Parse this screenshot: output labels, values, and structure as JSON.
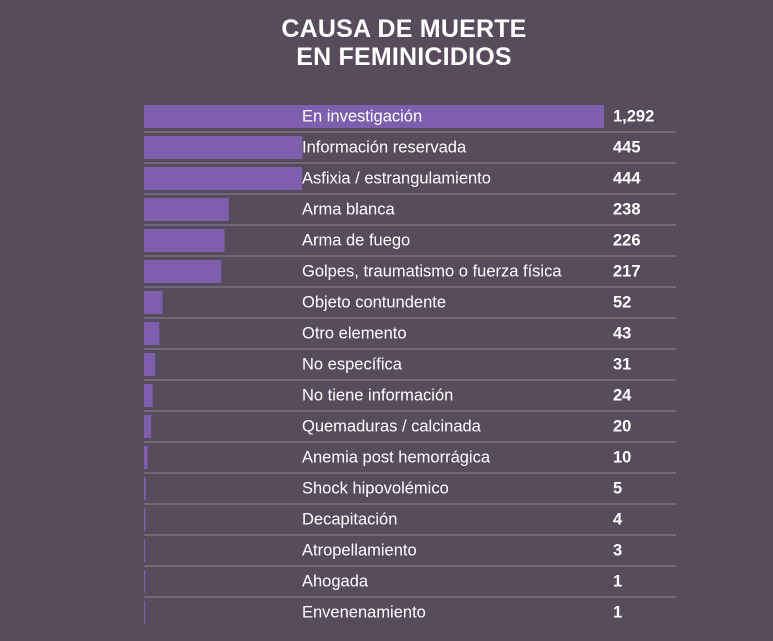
{
  "chart_data": {
    "type": "bar",
    "orientation": "horizontal",
    "title_lines": [
      "CAUSA DE MUERTE",
      "EN FEMINICIDIOS"
    ],
    "categories": [
      "En investigación",
      "Información reservada",
      "Asfixia / estrangulamiento",
      "Arma blanca",
      "Arma de fuego",
      "Golpes, traumatismo o fuerza física",
      "Objeto contundente",
      "Otro elemento",
      "No específica",
      "No tiene información",
      "Quemaduras / calcinada",
      "Anemia post hemorrágica",
      "Shock hipovolémico",
      "Decapitación",
      "Atropellamiento",
      "Ahogada",
      "Envenenamiento"
    ],
    "values": [
      1292,
      445,
      444,
      238,
      226,
      217,
      52,
      43,
      31,
      24,
      20,
      10,
      5,
      4,
      3,
      1,
      1
    ],
    "value_labels": [
      "1,292",
      "445",
      "444",
      "238",
      "226",
      "217",
      "52",
      "43",
      "31",
      "24",
      "20",
      "10",
      "5",
      "4",
      "3",
      "1",
      "1"
    ],
    "xlim": [
      0,
      1292
    ],
    "grid": false,
    "legend": "none",
    "colors": {
      "background": "#574c5c",
      "bar": "#7d5fae",
      "divider": "#8e8594",
      "text": "#ffffff"
    }
  }
}
